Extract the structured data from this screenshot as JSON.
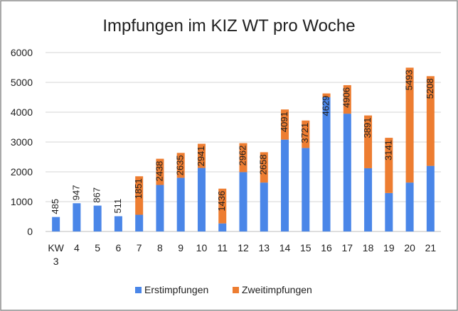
{
  "chart_data": {
    "type": "bar",
    "stacked": true,
    "title": "Impfungen im KIZ WT pro Woche",
    "xlabel": "",
    "ylabel": "",
    "ylim": [
      0,
      6000
    ],
    "yticks": [
      0,
      1000,
      2000,
      3000,
      4000,
      5000,
      6000
    ],
    "grid": true,
    "legend_position": "bottom",
    "categories": [
      "KW 3",
      "4",
      "5",
      "6",
      "7",
      "8",
      "9",
      "10",
      "11",
      "12",
      "13",
      "14",
      "15",
      "16",
      "17",
      "18",
      "19",
      "20",
      "21"
    ],
    "series": [
      {
        "name": "Erstimpfungen",
        "color": "#4a86e8",
        "values": [
          485,
          947,
          867,
          511,
          560,
          1560,
          1800,
          2130,
          270,
          1990,
          1640,
          3080,
          2800,
          4500,
          3950,
          2120,
          1290,
          1640,
          2200
        ]
      },
      {
        "name": "Zweitimpfungen",
        "color": "#ed7d31",
        "values": [
          0,
          0,
          0,
          0,
          1291,
          878,
          835,
          811,
          1166,
          972,
          1018,
          1011,
          921,
          129,
          956,
          1771,
          1851,
          3853,
          3008
        ]
      }
    ],
    "totals": [
      485,
      947,
      867,
      511,
      1851,
      2438,
      2635,
      2941,
      1436,
      2962,
      2658,
      4091,
      3721,
      4629,
      4906,
      3891,
      3141,
      5493,
      5208
    ],
    "data_labels": [
      "485",
      "947",
      "867",
      "511",
      "1851",
      "2438",
      "2635",
      "2941",
      "1436",
      "2962",
      "2658",
      "4091",
      "3721",
      "4629",
      "4906",
      "3891",
      "3141",
      "5493",
      "5208"
    ]
  }
}
